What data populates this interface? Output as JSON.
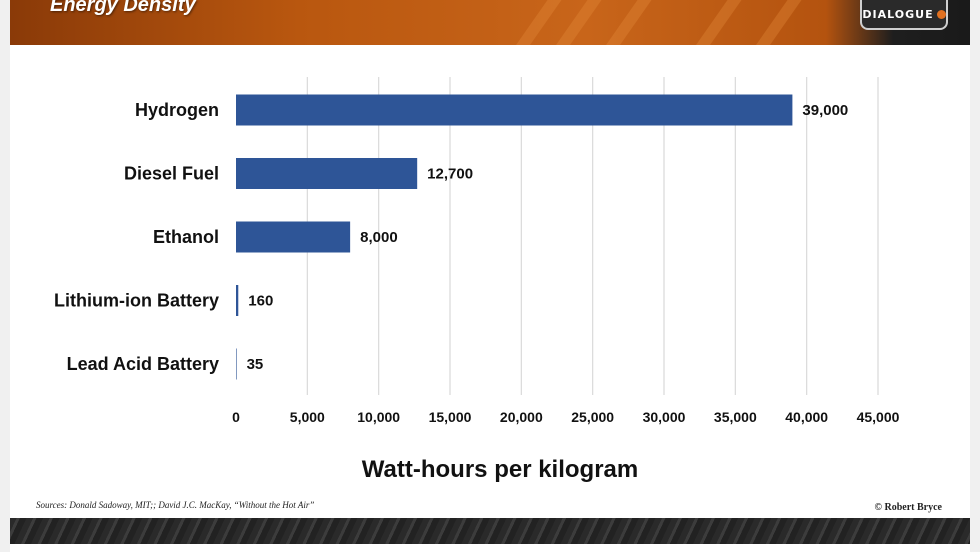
{
  "header": {
    "title": "Energy Density",
    "logo_text": "DIALOGUE",
    "logo_icon": "globe-icon"
  },
  "footer": {
    "sources": "Sources: Donald Sadoway, MIT;; David J.C. MacKay, “Without the Hot Air”",
    "copyright": "© Robert Bryce"
  },
  "chart_data": {
    "type": "bar",
    "orientation": "horizontal",
    "categories": [
      "Hydrogen",
      "Diesel Fuel",
      "Ethanol",
      "Lithium-ion Battery",
      "Lead Acid Battery"
    ],
    "values": [
      39000,
      12700,
      8000,
      160,
      35
    ],
    "value_labels": [
      "39,000",
      "12,700",
      "8,000",
      "160",
      "35"
    ],
    "xlabel": "Watt-hours per kilogram",
    "ylabel": "",
    "xlim": [
      0,
      45000
    ],
    "xticks": [
      0,
      5000,
      10000,
      15000,
      20000,
      25000,
      30000,
      35000,
      40000,
      45000
    ],
    "xtick_labels": [
      "0",
      "5,000",
      "10,000",
      "15,000",
      "20,000",
      "25,000",
      "30,000",
      "35,000",
      "40,000",
      "45,000"
    ],
    "grid": "vertical",
    "bar_color": "#2e5597",
    "grid_color": "#d9d9d9"
  }
}
